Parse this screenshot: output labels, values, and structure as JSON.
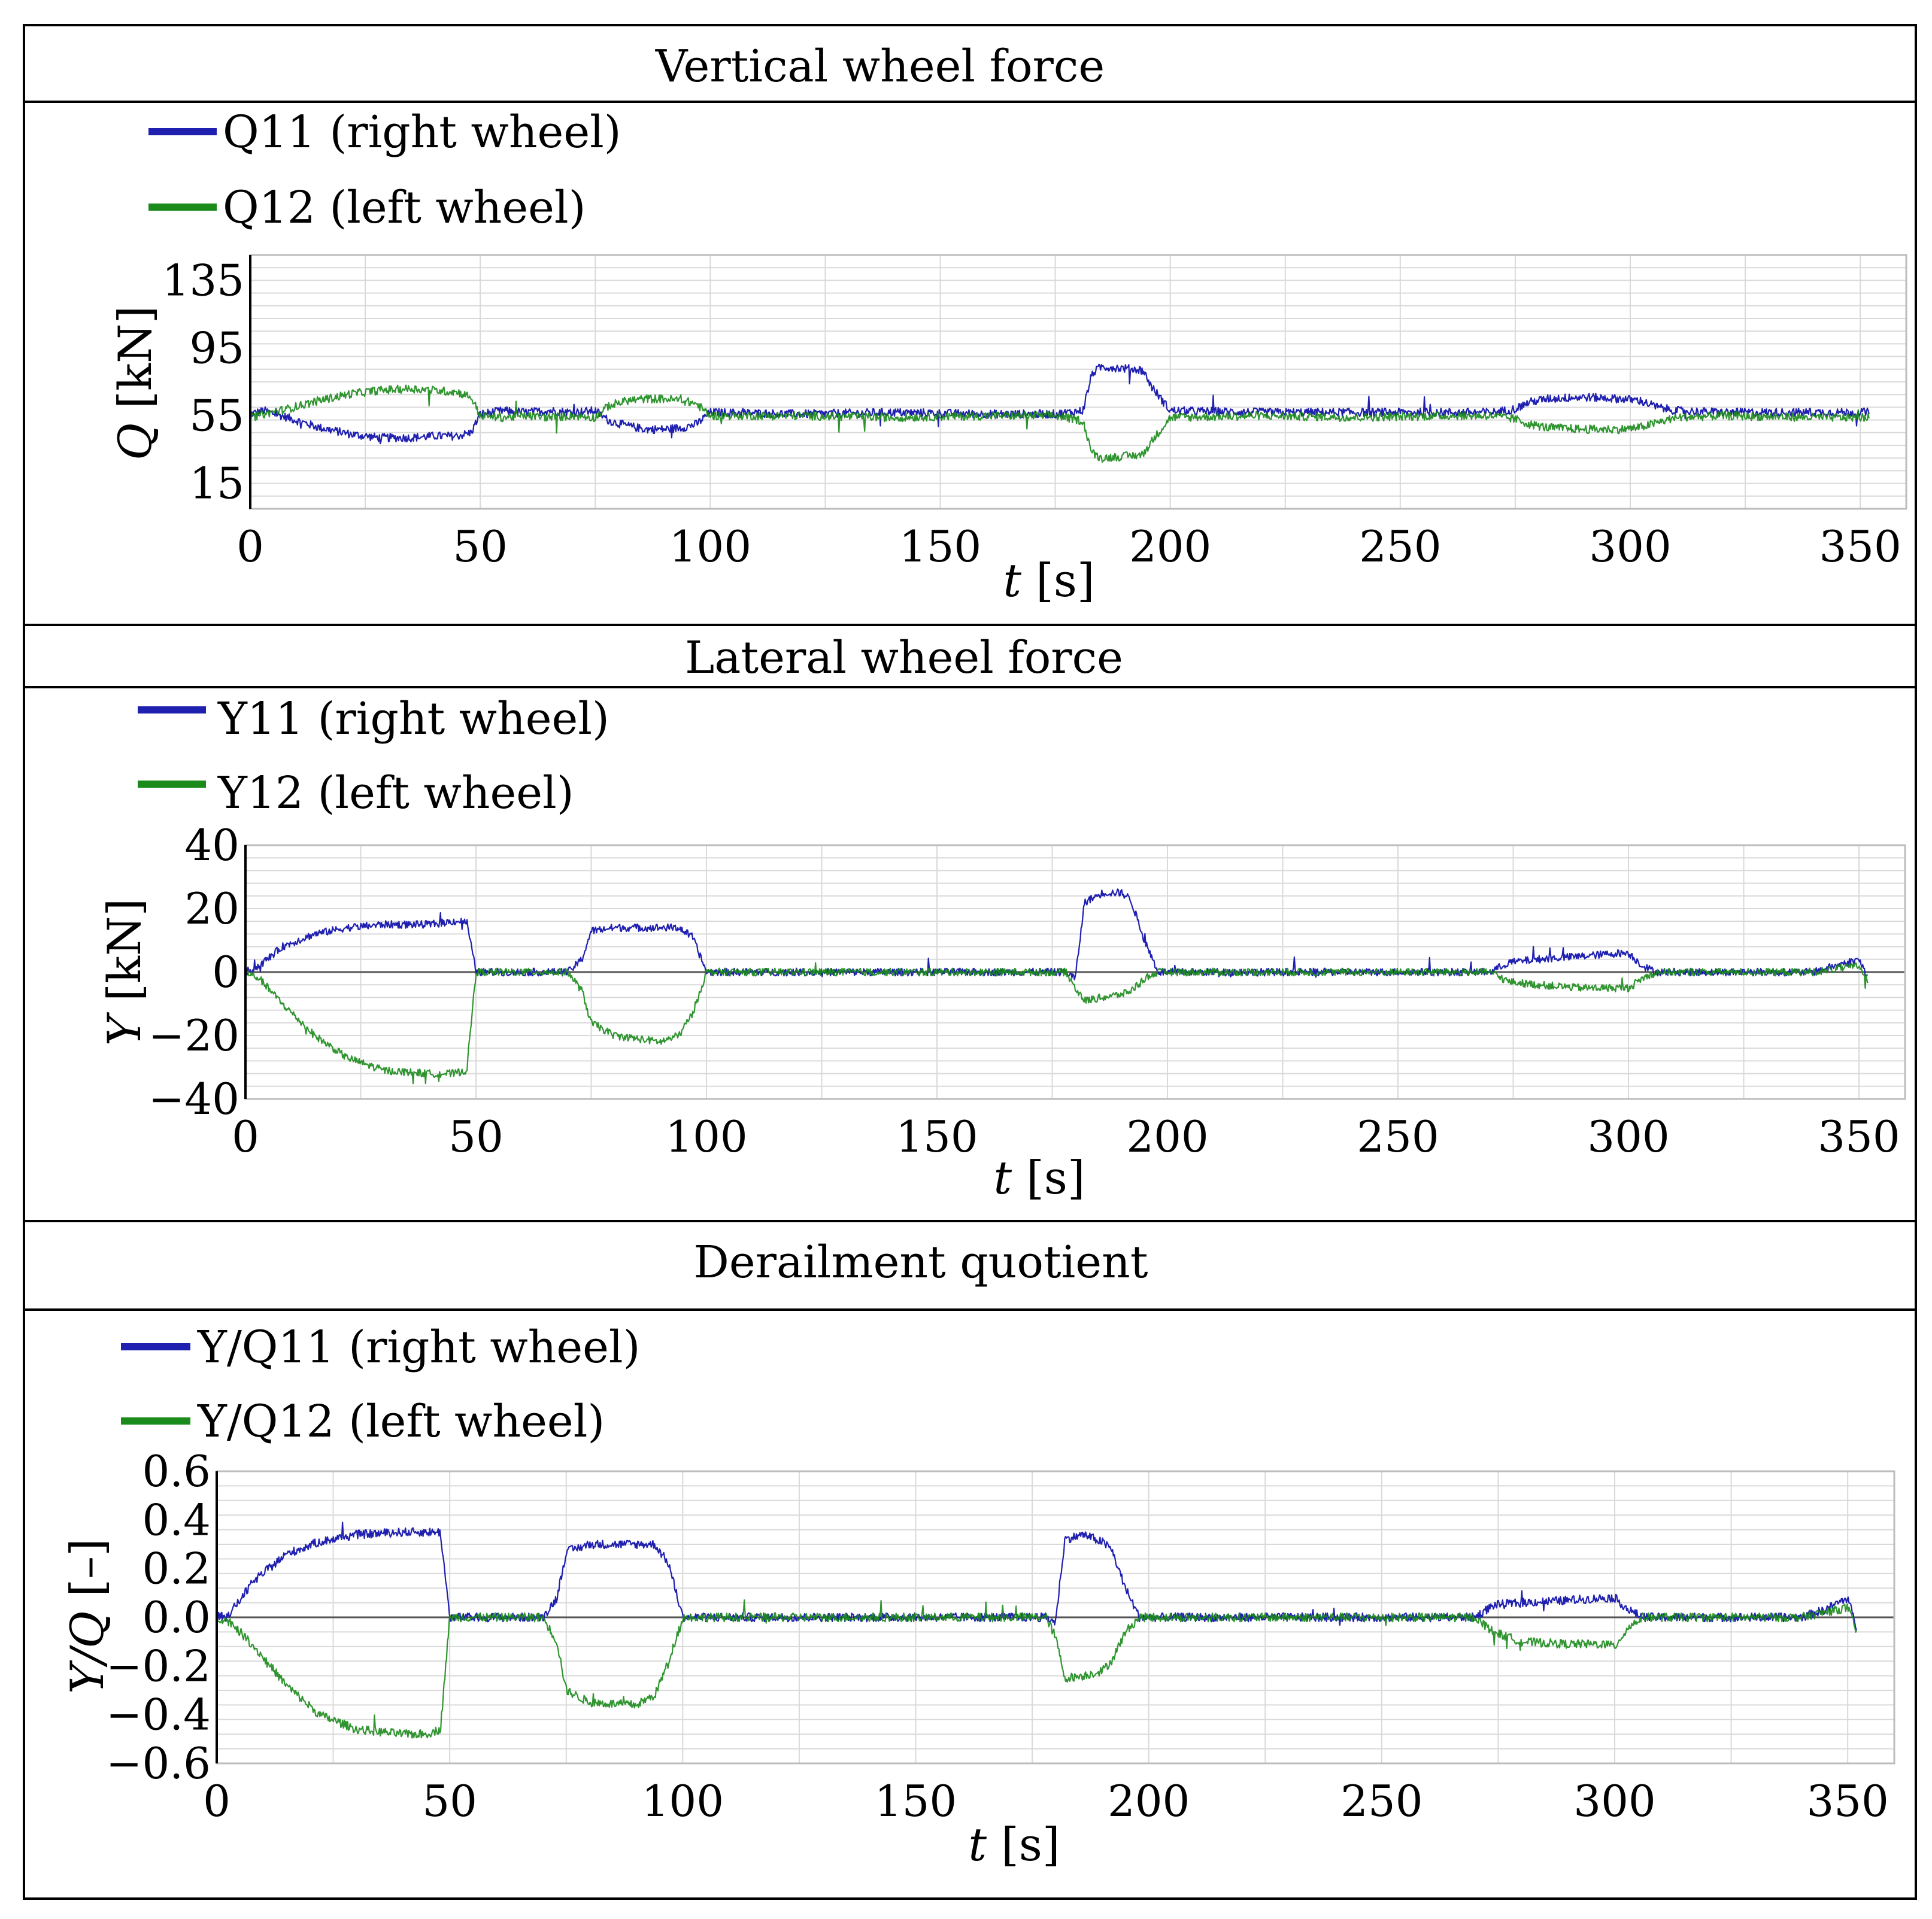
{
  "colors": {
    "right_wheel": "#1f1fb0",
    "left_wheel": "#1a8a1a",
    "grid": "#d9d9d9",
    "frame": "#000000",
    "zero_line": "#555555"
  },
  "chart_data": [
    {
      "type": "line",
      "title": "Vertical wheel force",
      "xlabel": {
        "symbol": "t",
        "unit": "[s]"
      },
      "ylabel": {
        "symbol": "Q",
        "unit": "[kN]"
      },
      "xlim": [
        0,
        360
      ],
      "ylim": [
        0,
        150
      ],
      "xticks": [
        0,
        50,
        100,
        150,
        200,
        250,
        300,
        350
      ],
      "yticks": [
        15,
        55,
        95,
        135
      ],
      "xtick_labels": [
        "0",
        "50",
        "100",
        "150",
        "200",
        "250",
        "300",
        "350"
      ],
      "ytick_labels": [
        "15",
        "55",
        "95",
        "135"
      ],
      "zero_line": false,
      "noise": 2.5,
      "series": [
        {
          "id": "Q11",
          "name": "Q11",
          "desc": "(right wheel)",
          "color": "right_wheel",
          "x": [
            0,
            3,
            8,
            15,
            22,
            28,
            35,
            40,
            45,
            48,
            50,
            55,
            60,
            65,
            70,
            75,
            78,
            82,
            86,
            90,
            94,
            97,
            100,
            120,
            140,
            160,
            175,
            181,
            183,
            185,
            190,
            194,
            196,
            200,
            220,
            240,
            260,
            270,
            275,
            278,
            282,
            290,
            298,
            302,
            306,
            310,
            320,
            340,
            352
          ],
          "y": [
            56,
            58,
            54,
            48,
            44,
            42,
            42,
            43,
            43,
            45,
            56,
            58,
            57,
            58,
            57,
            58,
            52,
            49,
            47,
            47,
            48,
            50,
            57,
            56,
            57,
            56,
            56,
            58,
            80,
            84,
            83,
            82,
            72,
            58,
            57,
            57,
            57,
            57,
            59,
            63,
            65,
            66,
            65,
            64,
            60,
            58,
            57,
            57,
            57
          ]
        },
        {
          "id": "Q12",
          "name": "Q12",
          "desc": "(left wheel)",
          "color": "left_wheel",
          "x": [
            0,
            3,
            8,
            15,
            22,
            28,
            35,
            40,
            45,
            48,
            50,
            55,
            60,
            65,
            70,
            75,
            78,
            82,
            86,
            90,
            94,
            97,
            100,
            120,
            140,
            160,
            175,
            181,
            183,
            185,
            190,
            194,
            196,
            200,
            220,
            240,
            260,
            270,
            275,
            278,
            282,
            290,
            298,
            302,
            306,
            310,
            320,
            340,
            352
          ],
          "y": [
            54,
            56,
            59,
            64,
            68,
            70,
            71,
            70,
            69,
            66,
            55,
            54,
            55,
            54,
            55,
            54,
            61,
            64,
            65,
            65,
            64,
            62,
            55,
            55,
            54,
            55,
            55,
            52,
            33,
            30,
            31,
            32,
            40,
            54,
            55,
            54,
            55,
            55,
            53,
            50,
            48,
            47,
            47,
            48,
            51,
            54,
            55,
            54,
            54
          ]
        }
      ],
      "legend": [
        {
          "series": "Q11",
          "text": "Q11 (right wheel)"
        },
        {
          "series": "Q12",
          "text": "Q12 (left wheel)"
        }
      ]
    },
    {
      "type": "line",
      "title": "Lateral wheel force",
      "xlabel": {
        "symbol": "t",
        "unit": "[s]"
      },
      "ylabel": {
        "symbol": "Y",
        "unit": "[kN]"
      },
      "xlim": [
        0,
        360
      ],
      "ylim": [
        -40,
        40
      ],
      "xticks": [
        0,
        50,
        100,
        150,
        200,
        250,
        300,
        350
      ],
      "yticks": [
        -40,
        -20,
        0,
        20,
        40
      ],
      "xtick_labels": [
        "0",
        "50",
        "100",
        "150",
        "200",
        "250",
        "300",
        "350"
      ],
      "ytick_labels": [
        "−40",
        "−20",
        "0",
        "20",
        "40"
      ],
      "zero_line": true,
      "noise": 1.2,
      "series": [
        {
          "id": "Y11",
          "name": "Y11",
          "desc": "(right wheel)",
          "color": "right_wheel",
          "x": [
            0,
            3,
            8,
            15,
            22,
            30,
            40,
            45,
            48,
            50,
            60,
            70,
            73,
            75,
            80,
            90,
            94,
            97,
            100,
            130,
            160,
            178,
            180,
            182,
            186,
            190,
            192,
            195,
            198,
            220,
            250,
            270,
            274,
            280,
            290,
            298,
            300,
            303,
            306,
            320,
            340,
            345,
            350,
            352
          ],
          "y": [
            0,
            2,
            8,
            12,
            14,
            15,
            15,
            16,
            16,
            0,
            0,
            0,
            4,
            13,
            14,
            14,
            14,
            11,
            0,
            0,
            0,
            0,
            -2,
            22,
            25,
            25,
            23,
            10,
            0,
            0,
            0,
            0,
            3,
            4,
            5,
            6,
            6,
            2,
            0,
            0,
            0,
            2,
            4,
            -2
          ]
        },
        {
          "id": "Y12",
          "name": "Y12",
          "desc": "(left wheel)",
          "color": "left_wheel",
          "x": [
            0,
            3,
            8,
            15,
            22,
            30,
            40,
            45,
            48,
            50,
            60,
            70,
            73,
            75,
            80,
            90,
            94,
            97,
            100,
            130,
            160,
            178,
            180,
            182,
            186,
            190,
            192,
            195,
            198,
            220,
            250,
            270,
            274,
            280,
            290,
            298,
            300,
            303,
            306,
            320,
            340,
            345,
            350,
            352
          ],
          "y": [
            0,
            -2,
            -10,
            -20,
            -27,
            -31,
            -32,
            -32,
            -31,
            0,
            0,
            0,
            -6,
            -16,
            -20,
            -22,
            -20,
            -13,
            0,
            0,
            0,
            0,
            -5,
            -9,
            -8,
            -7,
            -6,
            -2,
            0,
            0,
            0,
            0,
            -3,
            -4,
            -5,
            -5,
            -5,
            -2,
            0,
            0,
            0,
            1,
            2,
            -3
          ]
        }
      ],
      "legend": [
        {
          "series": "Y11",
          "text": "Y11 (right wheel)"
        },
        {
          "series": "Y12",
          "text": "Y12 (left wheel)"
        }
      ]
    },
    {
      "type": "line",
      "title": "Derailment quotient",
      "xlabel": {
        "symbol": "t",
        "unit": "[s]"
      },
      "ylabel": {
        "symbol": "Y/Q",
        "unit": "[–]"
      },
      "xlim": [
        0,
        360
      ],
      "ylim": [
        -0.6,
        0.6
      ],
      "xticks": [
        0,
        50,
        100,
        150,
        200,
        250,
        300,
        350
      ],
      "yticks": [
        -0.6,
        -0.4,
        -0.2,
        0.0,
        0.2,
        0.4,
        0.6
      ],
      "xtick_labels": [
        "0",
        "50",
        "100",
        "150",
        "200",
        "250",
        "300",
        "350"
      ],
      "ytick_labels": [
        "−0.6",
        "−0.4",
        "−0.2",
        "0.0",
        "0.2",
        "0.4",
        "0.6"
      ],
      "zero_line": true,
      "noise": 0.018,
      "series": [
        {
          "id": "YQ11",
          "name": "Y/Q11",
          "desc": "(right wheel)",
          "color": "right_wheel",
          "x": [
            0,
            3,
            8,
            15,
            22,
            30,
            40,
            45,
            48,
            50,
            60,
            70,
            73,
            75,
            80,
            90,
            94,
            97,
            100,
            130,
            160,
            178,
            180,
            182,
            186,
            190,
            192,
            195,
            198,
            220,
            250,
            270,
            274,
            280,
            290,
            298,
            300,
            303,
            306,
            320,
            340,
            345,
            350,
            352
          ],
          "y": [
            0,
            0.02,
            0.15,
            0.26,
            0.31,
            0.34,
            0.35,
            0.35,
            0.35,
            0,
            0,
            0,
            0.08,
            0.27,
            0.3,
            0.3,
            0.3,
            0.22,
            0,
            0,
            0,
            0,
            -0.02,
            0.32,
            0.34,
            0.31,
            0.28,
            0.12,
            0,
            0,
            0,
            0,
            0.05,
            0.06,
            0.07,
            0.08,
            0.08,
            0.03,
            0,
            0,
            0,
            0.03,
            0.08,
            -0.05
          ]
        },
        {
          "id": "YQ12",
          "name": "Y/Q12",
          "desc": "(left wheel)",
          "color": "left_wheel",
          "x": [
            0,
            3,
            8,
            15,
            22,
            30,
            40,
            45,
            48,
            50,
            60,
            70,
            73,
            75,
            80,
            90,
            94,
            97,
            100,
            130,
            160,
            178,
            180,
            182,
            186,
            190,
            192,
            195,
            198,
            220,
            250,
            270,
            274,
            280,
            290,
            298,
            300,
            303,
            306,
            320,
            340,
            345,
            350,
            352
          ],
          "y": [
            0,
            -0.02,
            -0.12,
            -0.28,
            -0.4,
            -0.46,
            -0.48,
            -0.48,
            -0.46,
            0,
            0,
            0,
            -0.1,
            -0.3,
            -0.35,
            -0.36,
            -0.32,
            -0.18,
            0,
            0,
            0,
            0,
            -0.08,
            -0.25,
            -0.24,
            -0.22,
            -0.18,
            -0.06,
            0,
            0,
            0,
            0,
            -0.06,
            -0.1,
            -0.11,
            -0.11,
            -0.12,
            -0.04,
            0,
            0,
            0,
            0.02,
            0.04,
            -0.06
          ]
        }
      ],
      "legend": [
        {
          "series": "YQ11",
          "text": "Y/Q11 (right wheel)"
        },
        {
          "series": "YQ12",
          "text": "Y/Q12 (left wheel)"
        }
      ]
    }
  ]
}
